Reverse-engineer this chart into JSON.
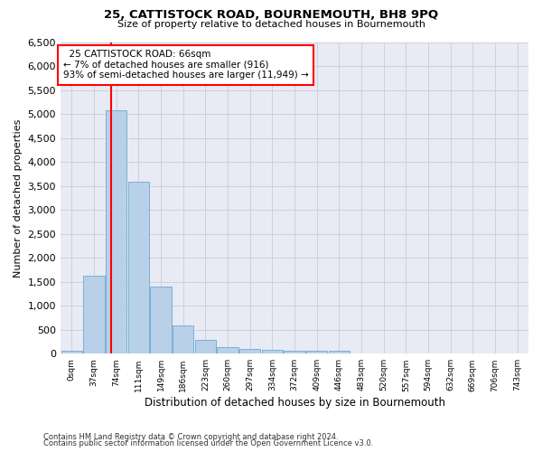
{
  "title1": "25, CATTISTOCK ROAD, BOURNEMOUTH, BH8 9PQ",
  "title2": "Size of property relative to detached houses in Bournemouth",
  "xlabel": "Distribution of detached houses by size in Bournemouth",
  "ylabel": "Number of detached properties",
  "footnote1": "Contains HM Land Registry data © Crown copyright and database right 2024.",
  "footnote2": "Contains public sector information licensed under the Open Government Licence v3.0.",
  "bar_labels": [
    "0sqm",
    "37sqm",
    "74sqm",
    "111sqm",
    "149sqm",
    "186sqm",
    "223sqm",
    "260sqm",
    "297sqm",
    "334sqm",
    "372sqm",
    "409sqm",
    "446sqm",
    "483sqm",
    "520sqm",
    "557sqm",
    "594sqm",
    "632sqm",
    "669sqm",
    "706sqm",
    "743sqm"
  ],
  "bar_values": [
    70,
    1630,
    5080,
    3580,
    1410,
    590,
    290,
    135,
    100,
    75,
    60,
    60,
    60,
    0,
    0,
    0,
    0,
    0,
    0,
    0,
    0
  ],
  "bar_color": "#b8d0e8",
  "bar_edge_color": "#6aaad4",
  "vline_color": "red",
  "annotation_title": "25 CATTISTOCK ROAD: 66sqm",
  "annotation_line1": "← 7% of detached houses are smaller (916)",
  "annotation_line2": "93% of semi-detached houses are larger (11,949) →",
  "annotation_box_color": "white",
  "annotation_box_edge": "red",
  "ylim": [
    0,
    6500
  ],
  "yticks": [
    0,
    500,
    1000,
    1500,
    2000,
    2500,
    3000,
    3500,
    4000,
    4500,
    5000,
    5500,
    6000,
    6500
  ],
  "grid_color": "#c8cce0",
  "bg_color": "#e8eaf4"
}
